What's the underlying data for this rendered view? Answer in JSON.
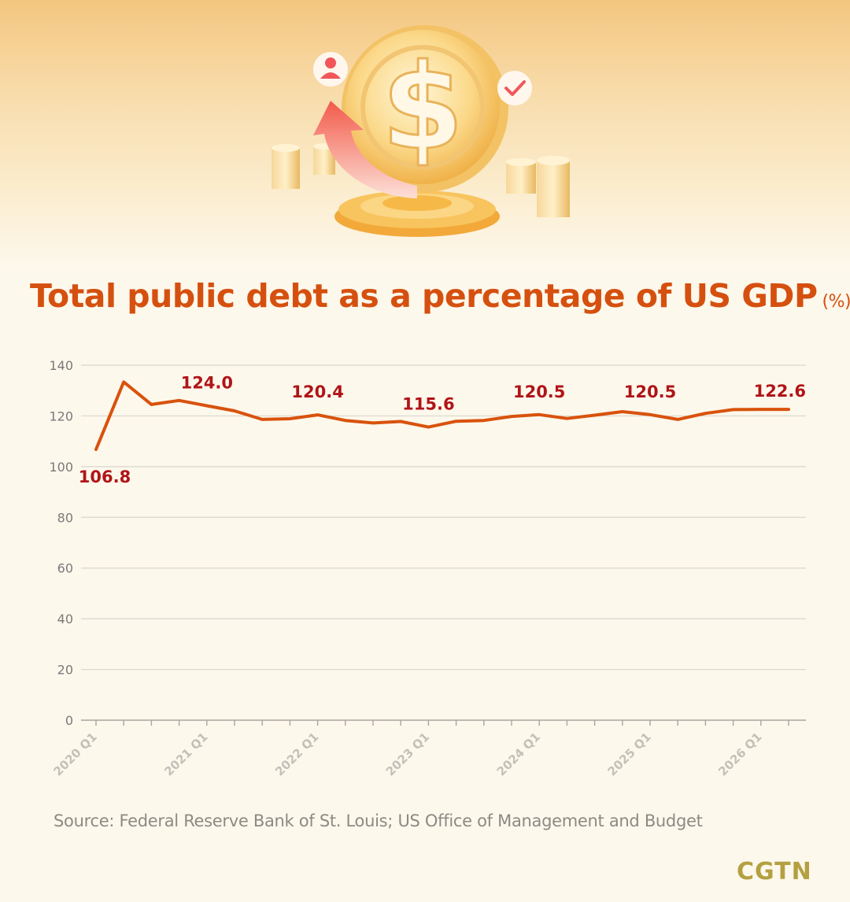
{
  "title": "Total public debt as a percentage of US GDP",
  "title_unit": "(%)",
  "source": "Source: Federal Reserve Bank of St. Louis; US Office of Management and Budget",
  "logo": "CGTN",
  "illustration": {
    "icons": [
      "dollar-coin-icon",
      "up-arrow-icon",
      "person-icon",
      "checkmark-icon",
      "coin-stack-icon"
    ]
  },
  "colors": {
    "title": "#d5500f",
    "line": "#d9520c",
    "data_label": "#b01418",
    "axis_text": "#7a7a7a",
    "grid": "#d9d6cf",
    "source": "#8c8a84",
    "logo": "#b4a040",
    "background": "#fdf8ec"
  },
  "chart_data": {
    "type": "line",
    "title": "Total public debt as a percentage of US GDP",
    "ylabel": "(%)",
    "xlabel": "",
    "ylim": [
      0,
      140
    ],
    "yticks": [
      0,
      20,
      40,
      60,
      80,
      100,
      120,
      140
    ],
    "grid": true,
    "x": [
      "2020 Q1",
      "2020 Q2",
      "2020 Q3",
      "2020 Q4",
      "2021 Q1",
      "2021 Q2",
      "2021 Q3",
      "2021 Q4",
      "2022 Q1",
      "2022 Q2",
      "2022 Q3",
      "2022 Q4",
      "2023 Q1",
      "2023 Q2",
      "2023 Q3",
      "2023 Q4",
      "2024 Q1",
      "2024 Q2",
      "2024 Q3",
      "2024 Q4",
      "2025 Q1",
      "2025 Q2",
      "2025 Q3",
      "2025 Q4",
      "2026 Q1",
      "2026 Q2"
    ],
    "xtick_labels": [
      {
        "index": 0,
        "label": "2020 Q1"
      },
      {
        "index": 4,
        "label": "2021 Q1"
      },
      {
        "index": 8,
        "label": "2022 Q1"
      },
      {
        "index": 12,
        "label": "2023 Q1"
      },
      {
        "index": 16,
        "label": "2024 Q1"
      },
      {
        "index": 20,
        "label": "2025 Q1"
      },
      {
        "index": 24,
        "label": "2026 Q1"
      }
    ],
    "values": [
      106.8,
      133.4,
      124.5,
      126.1,
      124.0,
      122.0,
      118.6,
      118.9,
      120.4,
      118.2,
      117.2,
      117.8,
      115.6,
      117.9,
      118.2,
      119.8,
      120.5,
      119.0,
      120.3,
      121.7,
      120.5,
      118.6,
      121.0,
      122.5,
      122.6,
      122.6
    ],
    "data_labels": [
      {
        "index": 0,
        "text": "106.8"
      },
      {
        "index": 4,
        "text": "124.0"
      },
      {
        "index": 8,
        "text": "120.4"
      },
      {
        "index": 12,
        "text": "115.6"
      },
      {
        "index": 16,
        "text": "120.5"
      },
      {
        "index": 20,
        "text": "120.5"
      },
      {
        "index": 24,
        "text": "122.6"
      }
    ]
  }
}
